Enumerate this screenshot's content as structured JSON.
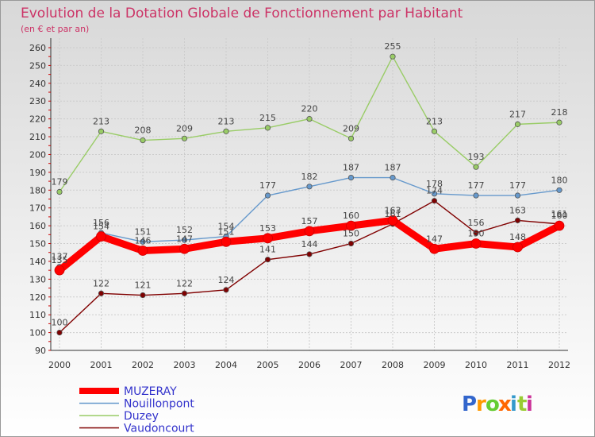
{
  "chart_data": {
    "type": "line",
    "title": "Evolution de la Dotation Globale de Fonctionnement par Habitant",
    "subtitle": "(en € et par an)",
    "categories": [
      "2000",
      "2001",
      "2002",
      "2003",
      "2004",
      "2005",
      "2006",
      "2007",
      "2008",
      "2009",
      "2010",
      "2011",
      "2012"
    ],
    "ylim": [
      90,
      260
    ],
    "yticks": [
      90,
      100,
      110,
      120,
      130,
      140,
      150,
      160,
      170,
      180,
      190,
      200,
      210,
      220,
      230,
      240,
      250,
      260
    ],
    "grid": true,
    "legend_position": "bottom-left",
    "series": [
      {
        "name": "MUZERAY",
        "color": "#ff0000",
        "values": [
          135,
          154,
          146,
          147,
          151,
          153,
          157,
          160,
          163,
          147,
          150,
          148,
          160
        ]
      },
      {
        "name": "Nouillonpont",
        "color": "#6699cc",
        "values": [
          137,
          156,
          151,
          152,
          154,
          177,
          182,
          187,
          187,
          178,
          177,
          177,
          180
        ]
      },
      {
        "name": "Duzey",
        "color": "#99cc66",
        "values": [
          179,
          213,
          208,
          209,
          213,
          215,
          220,
          209,
          255,
          213,
          193,
          217,
          218
        ]
      },
      {
        "name": "Vaudoncourt",
        "color": "#800000",
        "values": [
          100,
          122,
          121,
          122,
          124,
          141,
          144,
          150,
          161,
          174,
          156,
          163,
          161
        ]
      }
    ]
  },
  "colors": {
    "title": "#cc3366",
    "axis": "#333333",
    "tick_label": "#333333",
    "data_label": "#444444",
    "legend_text": "#3333cc"
  },
  "branding": {
    "logo_text": "Proxiti",
    "logo_letters": [
      "P",
      "r",
      "o",
      "x",
      "i",
      "t",
      "i"
    ],
    "logo_colors": [
      "#3366cc",
      "#ff9900",
      "#66cc33",
      "#ff6600",
      "#3399cc",
      "#99cc33",
      "#cc3399"
    ]
  }
}
